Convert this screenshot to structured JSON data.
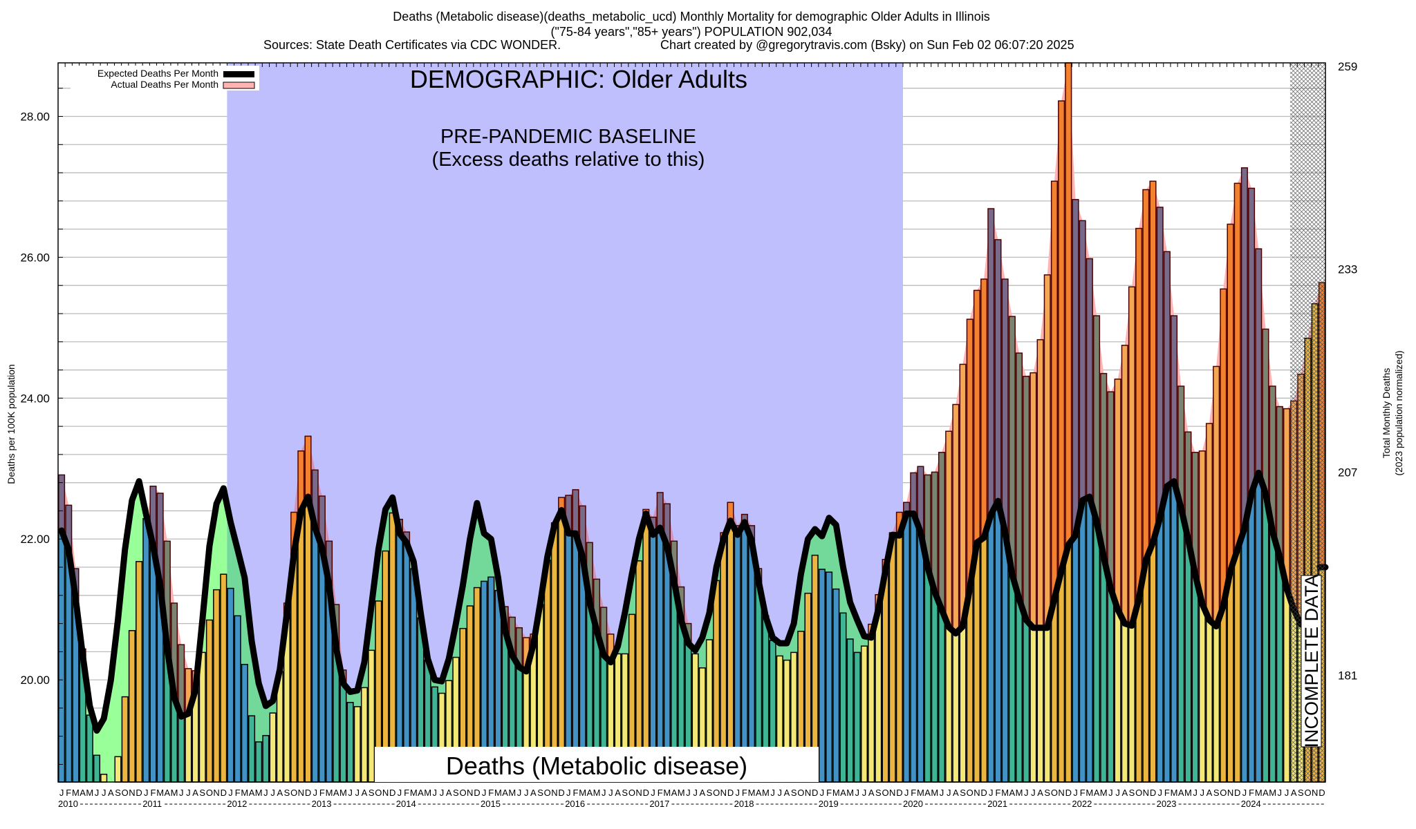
{
  "title": {
    "line1": "Deaths (Metabolic disease)(deaths_metabolic_ucd) Monthly Mortality for demographic Older Adults in Illinois",
    "line2": "(\"75-84 years\",\"85+ years\") POPULATION 902,034",
    "sources": "Sources: State Death Certificates via CDC WONDER.",
    "credit": "Chart created by @gregorytravis.com (Bsky) on Sun Feb 02 06:07:20 2025"
  },
  "legend": {
    "expected_label": "Expected Deaths Per Month",
    "actual_label": "Actual Deaths Per Month"
  },
  "annotations": {
    "demographic": "DEMOGRAPHIC: Older Adults",
    "baseline_title": "PRE-PANDEMIC BASELINE",
    "baseline_subtitle": "(Excess deaths relative to this)",
    "cause_label": "Deaths (Metabolic disease)",
    "incomplete": "INCOMPLETE DATA"
  },
  "chart_data": {
    "type": "bar",
    "title": "Deaths (Metabolic disease) Monthly Mortality for demographic Older Adults in Illinois",
    "ylabel": "Deaths per 100K population",
    "y2label": [
      "Total Monthly Deaths",
      "(2023 population normalized)"
    ],
    "population": 902034,
    "ylim": [
      18.55,
      28.76
    ],
    "yticks": [
      "20.00",
      "22.00",
      "24.00",
      "26.00",
      "28.00"
    ],
    "y2ticks": [
      "259",
      "233",
      "207",
      "181"
    ],
    "grid_step": 0.4,
    "month_labels": [
      "J",
      "F",
      "M",
      "A",
      "M",
      "J",
      "J",
      "A",
      "S",
      "O",
      "N",
      "D"
    ],
    "years": [
      "2010",
      "2011",
      "2012",
      "2013",
      "2014",
      "2015",
      "2016",
      "2017",
      "2018",
      "2019",
      "2020",
      "2021",
      "2022",
      "2023",
      "2024"
    ],
    "baseline_period": {
      "start": "2012-01",
      "end": "2019-12"
    },
    "incomplete_from": "2024-08",
    "actual": [
      22.91,
      22.48,
      21.58,
      20.44,
      19.5,
      18.93,
      18.66,
      18.45,
      18.91,
      19.76,
      20.7,
      21.68,
      22.29,
      22.75,
      22.65,
      21.97,
      21.09,
      20.5,
      20.16,
      20.13,
      20.39,
      20.85,
      21.28,
      21.5,
      21.3,
      20.91,
      20.22,
      19.49,
      19.12,
      19.21,
      19.53,
      20.12,
      21.09,
      22.38,
      23.25,
      23.46,
      22.98,
      22.61,
      21.97,
      21.07,
      20.14,
      19.68,
      19.62,
      19.89,
      20.42,
      21.12,
      21.83,
      22.37,
      22.28,
      22.1,
      21.58,
      20.88,
      20.28,
      19.9,
      19.81,
      19.99,
      20.32,
      20.73,
      21.05,
      21.31,
      21.4,
      21.46,
      21.27,
      21.04,
      20.89,
      20.74,
      20.6,
      20.65,
      21.07,
      21.7,
      22.23,
      22.59,
      22.62,
      22.7,
      22.47,
      21.95,
      21.43,
      21.03,
      20.65,
      20.37,
      20.37,
      20.93,
      21.69,
      22.42,
      22.31,
      22.66,
      22.5,
      21.97,
      21.32,
      20.8,
      20.37,
      20.17,
      20.57,
      21.41,
      22.09,
      22.52,
      22.19,
      22.35,
      22.19,
      21.58,
      20.91,
      20.56,
      20.34,
      20.28,
      20.39,
      20.69,
      21.23,
      21.77,
      21.57,
      21.53,
      21.29,
      20.95,
      20.58,
      20.39,
      20.48,
      20.79,
      21.21,
      21.71,
      22.09,
      22.38,
      22.52,
      22.94,
      23.03,
      22.91,
      22.95,
      23.23,
      23.53,
      23.91,
      24.48,
      25.12,
      25.53,
      25.69,
      26.69,
      26.25,
      25.69,
      25.16,
      24.64,
      24.31,
      24.36,
      24.83,
      25.75,
      27.08,
      28.22,
      28.78,
      26.82,
      26.52,
      25.98,
      25.17,
      24.35,
      24.09,
      24.27,
      24.75,
      25.58,
      26.41,
      26.96,
      27.08,
      26.71,
      26.08,
      25.17,
      24.17,
      23.52,
      23.23,
      23.25,
      23.64,
      24.45,
      25.55,
      26.47,
      27.05,
      27.27,
      26.98,
      26.12,
      24.98,
      24.17,
      23.88,
      23.85,
      23.96,
      24.34,
      24.85,
      25.34,
      25.64
    ],
    "expected": [
      22.12,
      21.85,
      21.15,
      20.35,
      19.63,
      19.28,
      19.45,
      20.0,
      20.85,
      21.85,
      22.55,
      22.82,
      22.35,
      21.9,
      21.35,
      20.45,
      19.75,
      19.48,
      19.52,
      19.85,
      20.85,
      21.9,
      22.5,
      22.72,
      22.24,
      21.85,
      21.45,
      20.55,
      19.95,
      19.63,
      19.7,
      20.15,
      20.95,
      21.8,
      22.4,
      22.6,
      22.16,
      21.87,
      21.35,
      20.45,
      19.95,
      19.83,
      19.85,
      20.25,
      21.05,
      21.85,
      22.42,
      22.59,
      22.08,
      21.95,
      21.68,
      20.95,
      20.3,
      20.0,
      19.98,
      20.3,
      20.8,
      21.35,
      22.0,
      22.51,
      22.08,
      22.0,
      21.45,
      20.7,
      20.35,
      20.18,
      20.12,
      20.5,
      21.1,
      21.75,
      22.2,
      22.41,
      22.08,
      22.08,
      21.75,
      21.1,
      20.7,
      20.35,
      20.25,
      20.48,
      20.95,
      21.5,
      22.0,
      22.36,
      22.06,
      22.16,
      21.9,
      21.4,
      20.85,
      20.52,
      20.42,
      20.6,
      20.95,
      21.6,
      22.0,
      22.26,
      22.06,
      22.24,
      21.98,
      21.4,
      20.9,
      20.6,
      20.52,
      20.52,
      20.8,
      21.5,
      22.0,
      22.14,
      22.04,
      22.3,
      22.2,
      21.6,
      21.1,
      20.85,
      20.62,
      20.6,
      21.0,
      21.55,
      22.06,
      22.05,
      22.36,
      22.36,
      22.1,
      21.6,
      21.25,
      21.0,
      20.75,
      20.66,
      20.76,
      21.3,
      21.95,
      22.02,
      22.35,
      22.54,
      22.1,
      21.5,
      21.15,
      20.85,
      20.74,
      20.74,
      20.74,
      21.15,
      21.55,
      21.92,
      22.05,
      22.55,
      22.6,
      22.25,
      21.75,
      21.3,
      21.0,
      20.8,
      20.77,
      21.15,
      21.7,
      21.95,
      22.3,
      22.75,
      22.82,
      22.44,
      22.0,
      21.5,
      21.08,
      20.85,
      20.76,
      21.05,
      21.55,
      21.85,
      22.15,
      22.65,
      22.94,
      22.65,
      22.1,
      21.75,
      21.3,
      21.0,
      20.79,
      null,
      null,
      21.6
    ],
    "colors": {
      "quarter_fill": [
        "#4292c6",
        "#3fb596",
        "#f3e875",
        "#ecb540"
      ],
      "quarter_excess": [
        "#7a6a8a",
        "#7a8470",
        "#f5a852",
        "#f28230"
      ],
      "deficit_fill": "#99ff99",
      "deficit_fill_baseline": "#72d99b",
      "actual_area": "#ffb3b3",
      "actual_area_baseline": "#d493b5",
      "baseline_region": "#bfbffd",
      "expected_line": "#000000"
    }
  }
}
